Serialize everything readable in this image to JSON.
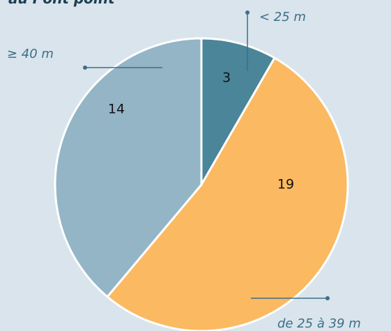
{
  "chart_data": {
    "type": "pie",
    "title": "au Pont point",
    "categories": [
      "< 25 m",
      "de 25 à 39 m",
      "≥ 40 m"
    ],
    "values": [
      3,
      19,
      14
    ],
    "colors": [
      "#4a8599",
      "#fbb961",
      "#93b5c6"
    ]
  }
}
